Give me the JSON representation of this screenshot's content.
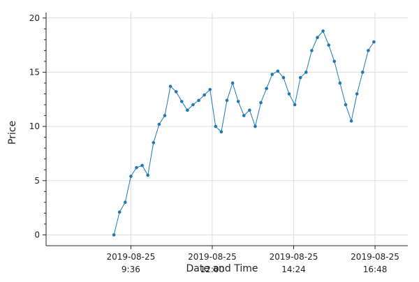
{
  "chart_data": {
    "type": "line",
    "title": "",
    "xlabel": "Date and Time",
    "ylabel": "Price",
    "xlim": [
      -120,
      520
    ],
    "ylim": [
      -1,
      20.5
    ],
    "grid": true,
    "yticks": [
      0,
      5,
      10,
      15,
      20
    ],
    "xticks": [
      {
        "value": 30,
        "date": "2019-08-25",
        "time": "9:36"
      },
      {
        "value": 174,
        "date": "2019-08-25",
        "time": "12:00"
      },
      {
        "value": 318,
        "date": "2019-08-25",
        "time": "14:24"
      },
      {
        "value": 462,
        "date": "2019-08-25",
        "time": "16:48"
      }
    ],
    "series": [
      {
        "name": "Price",
        "color": "#1f77b4",
        "x": [
          0,
          10,
          20,
          30,
          40,
          50,
          60,
          70,
          80,
          90,
          100,
          110,
          120,
          130,
          140,
          150,
          160,
          170,
          180,
          190,
          200,
          210,
          220,
          230,
          240,
          250,
          260,
          270,
          280,
          290,
          300,
          310,
          320,
          330,
          340,
          350,
          360,
          370,
          380,
          390,
          400,
          410,
          420,
          430,
          440,
          450,
          460
        ],
        "y": [
          0.0,
          2.1,
          3.0,
          5.4,
          6.2,
          6.4,
          5.5,
          8.5,
          10.2,
          11.0,
          13.7,
          13.2,
          12.3,
          11.5,
          12.0,
          12.4,
          12.9,
          13.4,
          10.0,
          9.5,
          12.4,
          14.0,
          12.3,
          11.0,
          11.5,
          10.0,
          12.2,
          13.5,
          14.8,
          15.1,
          14.5,
          13.0,
          12.0,
          14.5,
          15.0,
          17.0,
          18.2,
          18.8,
          17.5,
          16.0,
          14.0,
          12.0,
          10.5,
          13.0,
          15.0,
          17.0,
          17.8
        ]
      }
    ]
  }
}
